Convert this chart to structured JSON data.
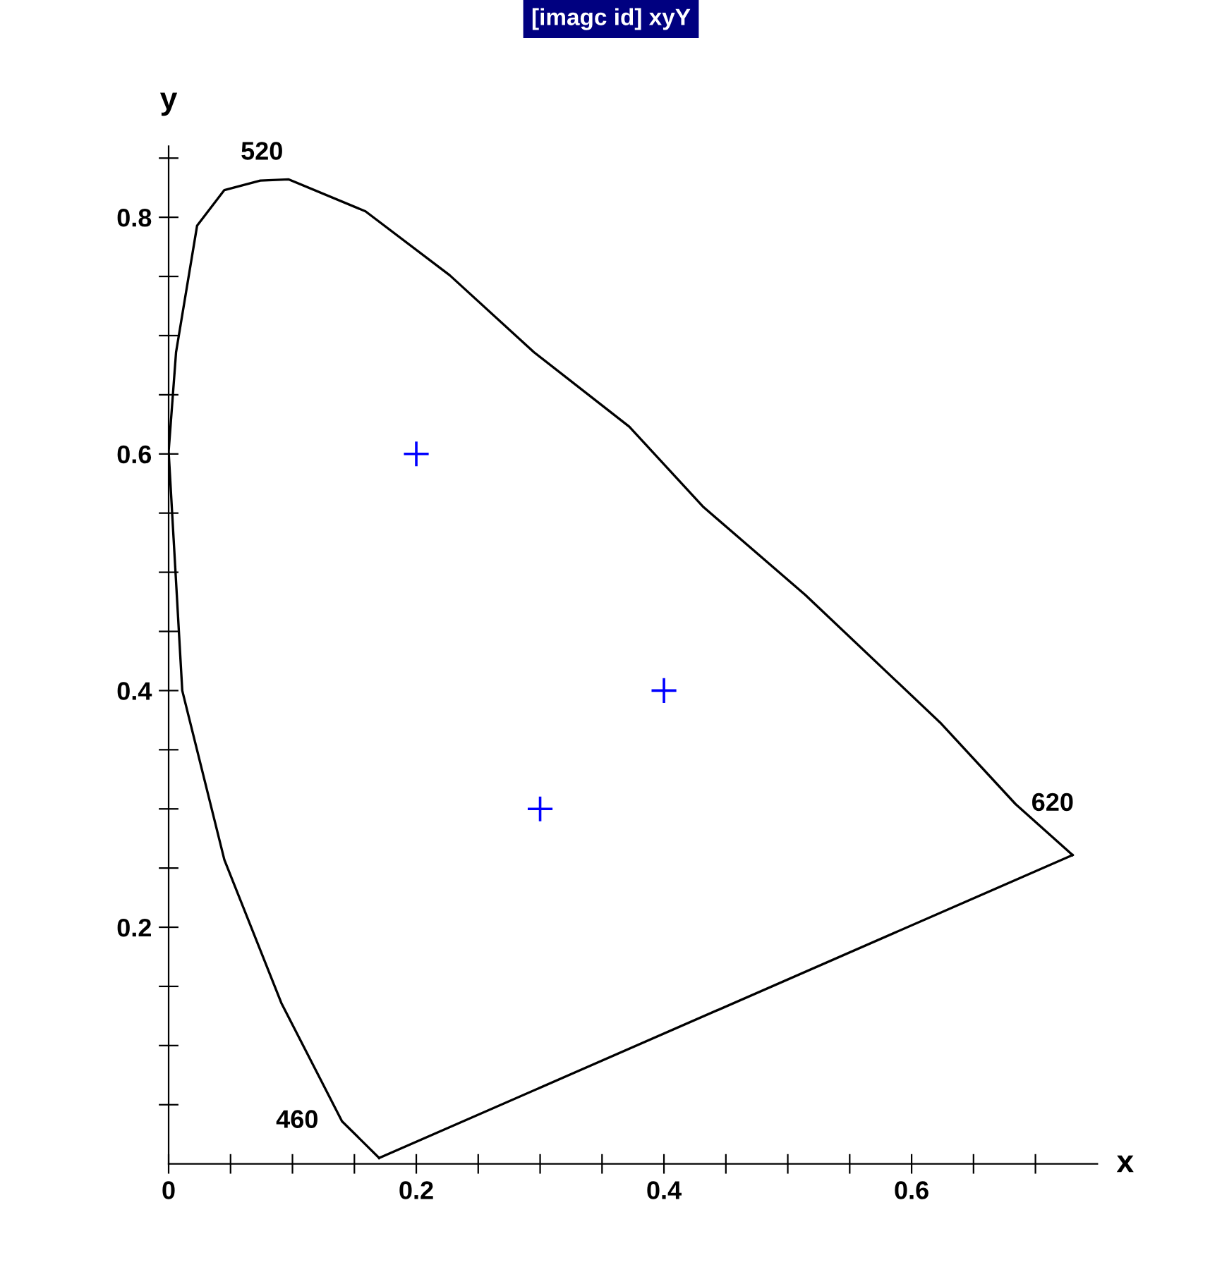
{
  "chart_data": {
    "type": "line",
    "title": "[imagc id] xyY",
    "xlabel": "x",
    "ylabel": "y",
    "xlim": [
      0,
      0.75
    ],
    "ylim": [
      0,
      0.86
    ],
    "xticks": [
      {
        "value": 0,
        "label": "0"
      },
      {
        "value": 0.05,
        "label": null
      },
      {
        "value": 0.1,
        "label": null
      },
      {
        "value": 0.15,
        "label": null
      },
      {
        "value": 0.2,
        "label": "0.2"
      },
      {
        "value": 0.25,
        "label": null
      },
      {
        "value": 0.3,
        "label": null
      },
      {
        "value": 0.35,
        "label": null
      },
      {
        "value": 0.4,
        "label": "0.4"
      },
      {
        "value": 0.45,
        "label": null
      },
      {
        "value": 0.5,
        "label": null
      },
      {
        "value": 0.55,
        "label": null
      },
      {
        "value": 0.6,
        "label": "0.6"
      },
      {
        "value": 0.65,
        "label": null
      },
      {
        "value": 0.7,
        "label": null
      }
    ],
    "yticks": [
      {
        "value": 0.05,
        "label": null
      },
      {
        "value": 0.1,
        "label": null
      },
      {
        "value": 0.15,
        "label": null
      },
      {
        "value": 0.2,
        "label": "0.2"
      },
      {
        "value": 0.25,
        "label": null
      },
      {
        "value": 0.3,
        "label": null
      },
      {
        "value": 0.35,
        "label": null
      },
      {
        "value": 0.4,
        "label": "0.4"
      },
      {
        "value": 0.45,
        "label": null
      },
      {
        "value": 0.5,
        "label": null
      },
      {
        "value": 0.55,
        "label": null
      },
      {
        "value": 0.6,
        "label": "0.6"
      },
      {
        "value": 0.65,
        "label": null
      },
      {
        "value": 0.7,
        "label": null
      },
      {
        "value": 0.75,
        "label": null
      },
      {
        "value": 0.8,
        "label": "0.8"
      },
      {
        "value": 0.85,
        "label": null
      }
    ],
    "grid": false,
    "series": [
      {
        "color": "#000000",
        "marker": "none",
        "x": [
          0.17,
          0.14,
          0.091,
          0.045,
          0.011,
          0.0,
          0.006,
          0.023,
          0.045,
          0.074,
          0.097,
          0.159,
          0.227,
          0.295,
          0.372,
          0.432,
          0.514,
          0.623,
          0.684,
          0.73
        ],
        "values": [
          0.005,
          0.036,
          0.136,
          0.257,
          0.4,
          0.602,
          0.686,
          0.793,
          0.823,
          0.831,
          0.832,
          0.805,
          0.751,
          0.686,
          0.623,
          0.555,
          0.481,
          0.373,
          0.304,
          0.261
        ]
      },
      {
        "color": "#000000",
        "marker": "none",
        "x": [
          0.17,
          0.73
        ],
        "values": [
          0.005,
          0.261
        ]
      },
      {
        "type": "scatter",
        "color": "#0000ff",
        "marker": "cross",
        "x": [
          0.2,
          0.4,
          0.3
        ],
        "values": [
          0.6,
          0.4,
          0.3
        ]
      }
    ],
    "annotations": [
      {
        "text": "520",
        "x": 0.074,
        "y": 0.831
      },
      {
        "text": "460",
        "x": 0.14,
        "y": 0.036
      },
      {
        "text": "620",
        "x": 0.684,
        "y": 0.304
      }
    ]
  }
}
